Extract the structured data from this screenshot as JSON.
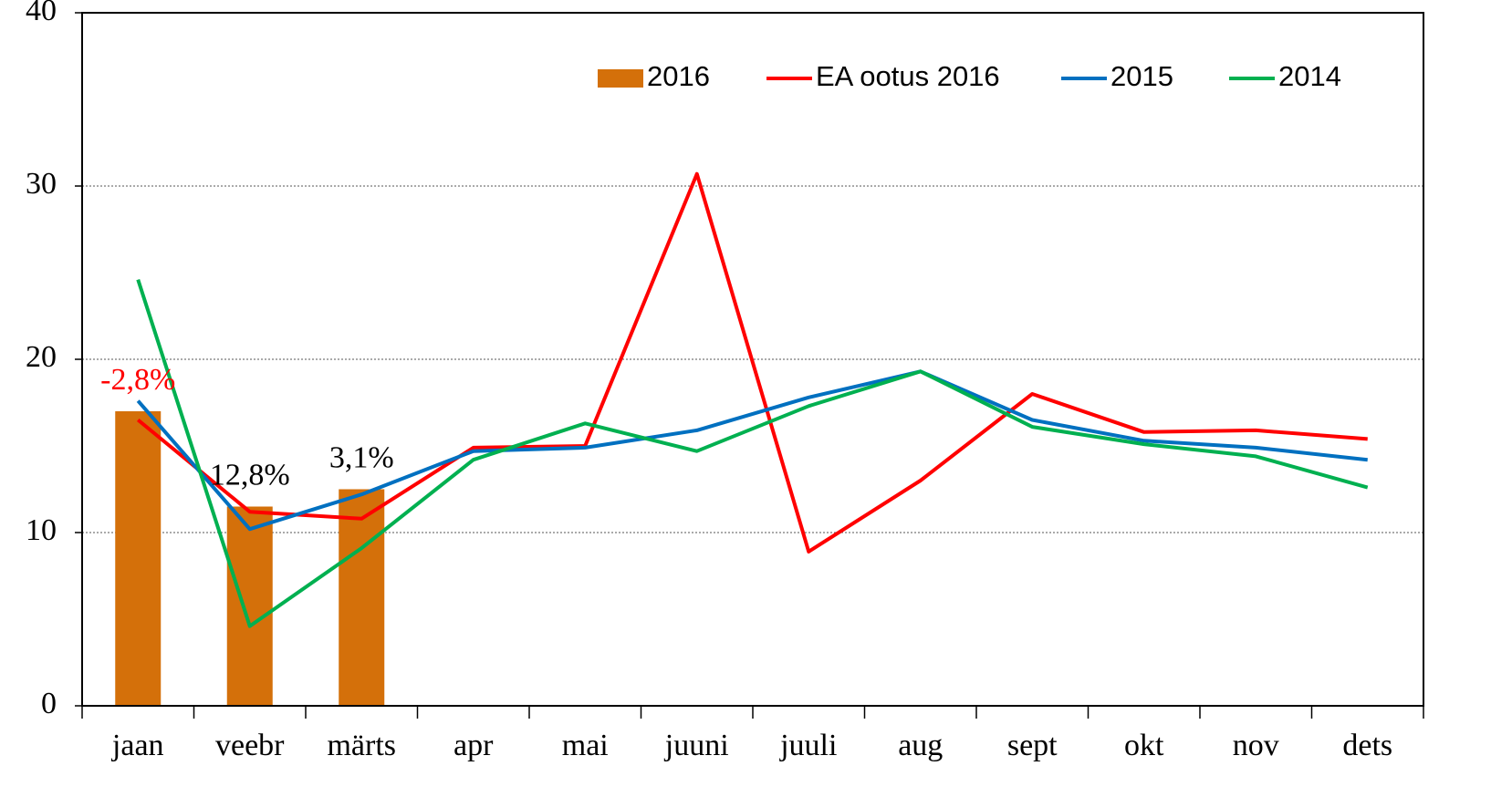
{
  "chart_data": {
    "type": "bar_line",
    "categories": [
      "jaan",
      "veebr",
      "märts",
      "apr",
      "mai",
      "juuni",
      "juuli",
      "aug",
      "sept",
      "okt",
      "nov",
      "dets"
    ],
    "series": [
      {
        "name": "2016",
        "type": "bar",
        "color": "#d4700a",
        "values": [
          17.0,
          11.5,
          12.5,
          null,
          null,
          null,
          null,
          null,
          null,
          null,
          null,
          null
        ]
      },
      {
        "name": "EA ootus 2016",
        "type": "line",
        "color": "#ff0000",
        "values": [
          16.5,
          11.2,
          10.8,
          14.9,
          15.0,
          30.7,
          8.9,
          13.0,
          18.0,
          15.8,
          15.9,
          15.4
        ]
      },
      {
        "name": "2015",
        "type": "line",
        "color": "#0070c0",
        "values": [
          17.6,
          10.2,
          12.2,
          14.7,
          14.9,
          15.9,
          17.8,
          19.3,
          16.5,
          15.3,
          14.9,
          14.2
        ]
      },
      {
        "name": "2014",
        "type": "line",
        "color": "#00b050",
        "values": [
          24.6,
          4.6,
          9.1,
          14.2,
          16.3,
          14.7,
          17.3,
          19.3,
          16.1,
          15.1,
          14.4,
          12.6
        ]
      }
    ],
    "annotations": [
      {
        "text": "-2,8%",
        "color": "#ff0000"
      },
      {
        "text": "12,8%",
        "color": "#000000"
      },
      {
        "text": "3,1%",
        "color": "#000000"
      }
    ],
    "ylim": [
      0,
      40
    ],
    "yticks": [
      0,
      10,
      20,
      30,
      40
    ],
    "grid": true,
    "legend": "top-right"
  }
}
